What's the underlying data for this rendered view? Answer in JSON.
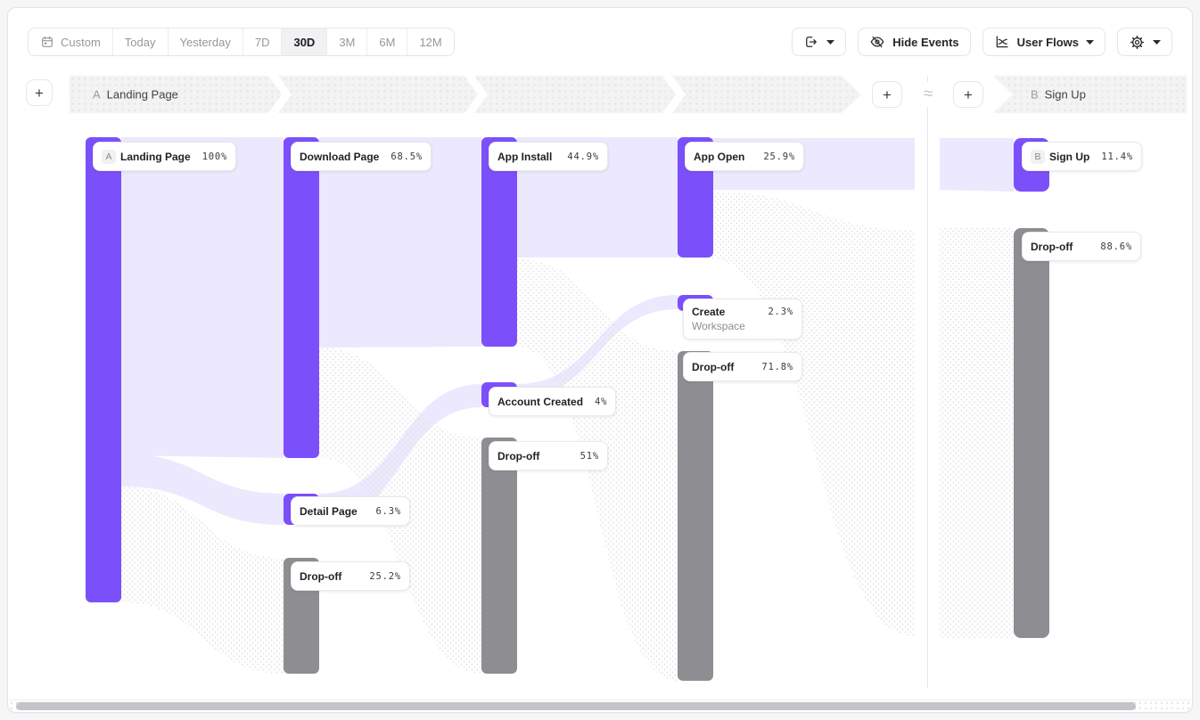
{
  "toolbar": {
    "time_ranges": [
      {
        "label": "Custom",
        "icon": "calendar-icon",
        "active": false
      },
      {
        "label": "Today",
        "active": false
      },
      {
        "label": "Yesterday",
        "active": false
      },
      {
        "label": "7D",
        "active": false
      },
      {
        "label": "30D",
        "active": true
      },
      {
        "label": "3M",
        "active": false
      },
      {
        "label": "6M",
        "active": false
      },
      {
        "label": "12M",
        "active": false
      }
    ],
    "export_button": {
      "icon": "export-icon"
    },
    "hide_events_button": {
      "icon": "eye-off-icon",
      "label": "Hide Events"
    },
    "view_button": {
      "icon": "flow-chart-icon",
      "label": "User Flows"
    },
    "settings_button": {
      "icon": "gear-icon"
    }
  },
  "funnel_header": {
    "add_step_label": "+",
    "approx_symbol": "≈",
    "step_a": {
      "letter": "A",
      "label": "Landing Page"
    },
    "step_b": {
      "letter": "B",
      "label": "Sign Up"
    }
  },
  "chart_data": {
    "type": "sankey",
    "unit": "percent of users",
    "nodes": [
      {
        "id": "landing",
        "name": "Landing Page",
        "pct": "100%",
        "letter": "A",
        "kind": "step"
      },
      {
        "id": "download",
        "name": "Download Page",
        "pct": "68.5%",
        "kind": "step"
      },
      {
        "id": "detail",
        "name": "Detail Page",
        "pct": "6.3%",
        "kind": "step"
      },
      {
        "id": "dropoff1",
        "name": "Drop-off",
        "pct": "25.2%",
        "kind": "dropoff"
      },
      {
        "id": "appinstall",
        "name": "App Install",
        "pct": "44.9%",
        "kind": "step"
      },
      {
        "id": "account",
        "name": "Account Created",
        "pct": "4%",
        "kind": "step"
      },
      {
        "id": "dropoff2",
        "name": "Drop-off",
        "pct": "51%",
        "kind": "dropoff"
      },
      {
        "id": "appopen",
        "name": "App Open",
        "pct": "25.9%",
        "kind": "step"
      },
      {
        "id": "workspace",
        "name": "Create",
        "name2": "Workspace",
        "pct": "2.3%",
        "kind": "step"
      },
      {
        "id": "dropoff3",
        "name": "Drop-off",
        "pct": "71.8%",
        "kind": "dropoff"
      },
      {
        "id": "signup",
        "name": "Sign Up",
        "pct": "11.4%",
        "letter": "B",
        "kind": "step"
      },
      {
        "id": "dropoff4",
        "name": "Drop-off",
        "pct": "88.6%",
        "kind": "dropoff"
      }
    ],
    "links": [
      {
        "from": "Landing Page",
        "to": "Download Page",
        "pct": 68.5,
        "style": "converted"
      },
      {
        "from": "Landing Page",
        "to": "Detail Page",
        "pct": 6.3,
        "style": "converted"
      },
      {
        "from": "Landing Page",
        "to": "Drop-off",
        "pct": 25.2,
        "style": "dropoff"
      },
      {
        "from": "Download Page",
        "to": "App Install",
        "pct": 44.9,
        "style": "converted"
      },
      {
        "from": "Detail Page",
        "to": "Account Created",
        "pct": 4,
        "style": "converted"
      },
      {
        "from": "Download Page",
        "to": "Drop-off",
        "pct": 51,
        "style": "dropoff"
      },
      {
        "from": "App Install",
        "to": "App Open",
        "pct": 25.9,
        "style": "converted"
      },
      {
        "from": "Account Created",
        "to": "Create Workspace",
        "pct": 2.3,
        "style": "converted"
      },
      {
        "from": "App Install",
        "to": "Drop-off",
        "pct": 71.8,
        "style": "dropoff"
      },
      {
        "from": "App Open",
        "to": "Sign Up",
        "pct": 11.4,
        "style": "converted"
      },
      {
        "from": "App Open",
        "to": "Drop-off",
        "pct": 88.6,
        "style": "dropoff"
      }
    ],
    "colors": {
      "step": "#7B50FA",
      "flow": "#ECE8FD",
      "dropoff": "#8E8E92"
    }
  }
}
